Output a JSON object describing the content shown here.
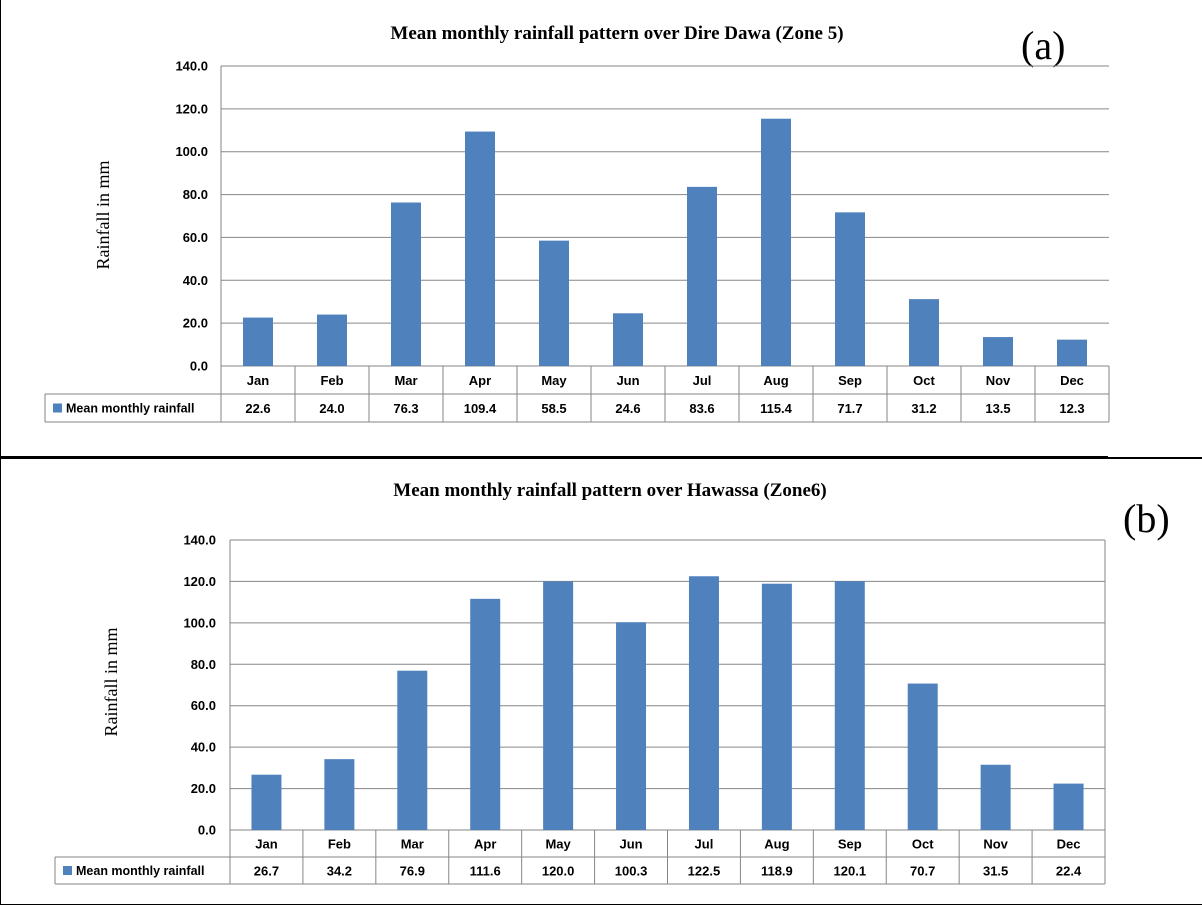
{
  "panels": [
    {
      "tag": "(a)"
    },
    {
      "tag": "(b)"
    }
  ],
  "colors": {
    "bar": "#4f81bd",
    "grid": "#868686",
    "border": "#000000"
  },
  "chart_data": [
    {
      "type": "bar",
      "title": "Mean monthly rainfall pattern over Dire Dawa (Zone 5)",
      "xlabel": "",
      "ylabel": "Rainfall in mm",
      "ylim": [
        0,
        140
      ],
      "yticks": [
        "0.0",
        "20.0",
        "40.0",
        "60.0",
        "80.0",
        "100.0",
        "120.0",
        "140.0"
      ],
      "grid": true,
      "legend": "data-table",
      "categories": [
        "Jan",
        "Feb",
        "Mar",
        "Apr",
        "May",
        "Jun",
        "Jul",
        "Aug",
        "Sep",
        "Oct",
        "Nov",
        "Dec"
      ],
      "series": [
        {
          "name": "Mean monthly rainfall",
          "values": [
            22.6,
            24.0,
            76.3,
            109.4,
            58.5,
            24.6,
            83.6,
            115.4,
            71.7,
            31.2,
            13.5,
            12.3
          ],
          "labels": [
            "22.6",
            "24.0",
            "76.3",
            "109.4",
            "58.5",
            "24.6",
            "83.6",
            "115.4",
            "71.7",
            "31.2",
            "13.5",
            "12.3"
          ]
        }
      ]
    },
    {
      "type": "bar",
      "title": "Mean monthly rainfall pattern over Hawassa (Zone6)",
      "xlabel": "",
      "ylabel": "Rainfall in mm",
      "ylim": [
        0,
        140
      ],
      "yticks": [
        "0.0",
        "20.0",
        "40.0",
        "60.0",
        "80.0",
        "100.0",
        "120.0",
        "140.0"
      ],
      "grid": true,
      "legend": "data-table",
      "categories": [
        "Jan",
        "Feb",
        "Mar",
        "Apr",
        "May",
        "Jun",
        "Jul",
        "Aug",
        "Sep",
        "Oct",
        "Nov",
        "Dec"
      ],
      "series": [
        {
          "name": "Mean monthly rainfall",
          "values": [
            26.7,
            34.2,
            76.9,
            111.6,
            120.0,
            100.3,
            122.5,
            118.9,
            120.1,
            70.7,
            31.5,
            22.4
          ],
          "labels": [
            "26.7",
            "34.2",
            "76.9",
            "111.6",
            "120.0",
            "100.3",
            "122.5",
            "118.9",
            "120.1",
            "70.7",
            "31.5",
            "22.4"
          ]
        }
      ]
    }
  ]
}
